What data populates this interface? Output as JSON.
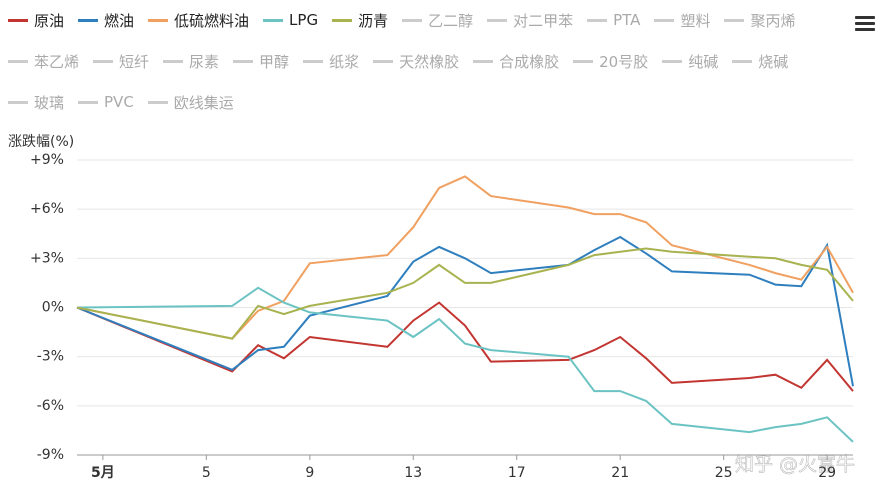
{
  "chart_data": {
    "type": "line",
    "y_label": "涨跌幅(%)",
    "watermark": "知乎 @火富牛",
    "x": [
      0,
      6,
      7,
      8,
      9,
      12,
      13,
      14,
      15,
      16,
      19,
      20,
      21,
      22,
      23,
      26,
      27,
      28,
      29,
      30
    ],
    "xlim": [
      0,
      30
    ],
    "xticks": [
      {
        "value": 1,
        "label": "5月"
      },
      5,
      9,
      13,
      17,
      21,
      25,
      29
    ],
    "ylim": [
      -9,
      9
    ],
    "yticks": [
      {
        "value": 9,
        "label": "+9%"
      },
      {
        "value": 6,
        "label": "+6%"
      },
      {
        "value": 3,
        "label": "+3%"
      },
      {
        "value": 0,
        "label": "0%"
      },
      {
        "value": -3,
        "label": "-3%"
      },
      {
        "value": -6,
        "label": "-6%"
      },
      {
        "value": -9,
        "label": "-9%"
      }
    ],
    "grid": true,
    "series": [
      {
        "name": "原油",
        "color": "#c23531",
        "values": [
          0,
          -3.9,
          -2.3,
          -3.1,
          -1.8,
          -2.4,
          -0.8,
          0.3,
          -1.1,
          -3.3,
          -3.2,
          -2.6,
          -1.8,
          -3.1,
          -4.6,
          -4.3,
          -4.1,
          -4.9,
          -3.2,
          -5.1
        ]
      },
      {
        "name": "燃油",
        "color": "#2f7fbf",
        "values": [
          0,
          -3.8,
          -2.6,
          -2.4,
          -0.5,
          0.7,
          2.8,
          3.7,
          3.0,
          2.1,
          2.6,
          3.5,
          4.3,
          3.3,
          2.2,
          2.0,
          1.4,
          1.3,
          3.8,
          -4.8
        ]
      },
      {
        "name": "低硫燃料油",
        "color": "#f0a060",
        "values": [
          0,
          -1.9,
          -0.2,
          0.4,
          2.7,
          3.2,
          4.9,
          7.3,
          8.0,
          6.8,
          6.1,
          5.7,
          5.7,
          5.2,
          3.8,
          2.6,
          2.1,
          1.7,
          3.7,
          0.9
        ]
      },
      {
        "name": "LPG",
        "color": "#6cc3c3",
        "values": [
          0,
          0.1,
          1.2,
          0.3,
          -0.3,
          -0.8,
          -1.8,
          -0.7,
          -2.2,
          -2.6,
          -3.0,
          -5.1,
          -5.1,
          -5.7,
          -7.1,
          -7.6,
          -7.3,
          -7.1,
          -6.7,
          -8.2
        ]
      },
      {
        "name": "沥青",
        "color": "#a8b350",
        "values": [
          0,
          -1.9,
          0.1,
          -0.4,
          0.1,
          0.9,
          1.5,
          2.6,
          1.5,
          1.5,
          2.6,
          3.2,
          3.4,
          3.6,
          3.4,
          3.1,
          3.0,
          2.6,
          2.3,
          0.4
        ]
      }
    ],
    "hidden_legend": [
      "乙二醇",
      "对二甲苯",
      "PTA",
      "塑料",
      "聚丙烯",
      "苯乙烯",
      "短纤",
      "尿素",
      "甲醇",
      "纸浆",
      "天然橡胶",
      "合成橡胶",
      "20号胶",
      "纯碱",
      "烧碱",
      "玻璃",
      "PVC",
      "欧线集运"
    ],
    "hidden_color": "#cccccc"
  }
}
